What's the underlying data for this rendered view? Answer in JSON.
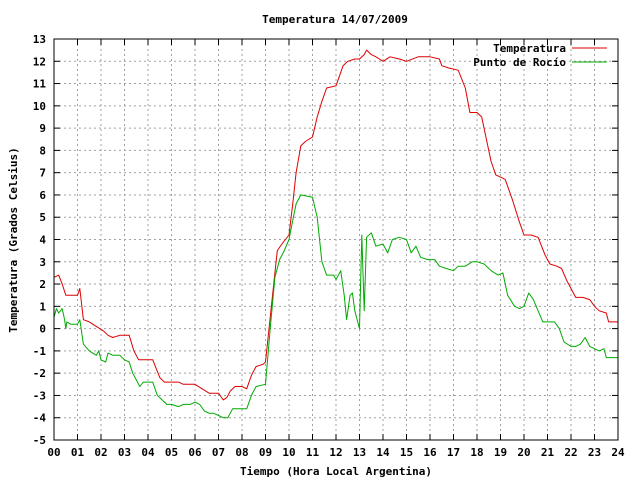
{
  "chart_data": {
    "type": "line",
    "title": "Temperatura 14/07/2009",
    "xlabel": "Tiempo (Hora Local Argentina)",
    "ylabel": "Temperatura (Grados Celsius)",
    "xlim": [
      0,
      24
    ],
    "ylim": [
      -5,
      13
    ],
    "x_ticks": [
      "00",
      "01",
      "02",
      "03",
      "04",
      "05",
      "06",
      "07",
      "08",
      "09",
      "10",
      "11",
      "12",
      "13",
      "14",
      "15",
      "16",
      "17",
      "18",
      "19",
      "20",
      "21",
      "22",
      "23",
      "24"
    ],
    "y_ticks": [
      -5,
      -4,
      -3,
      -2,
      -1,
      0,
      1,
      2,
      3,
      4,
      5,
      6,
      7,
      8,
      9,
      10,
      11,
      12,
      13
    ],
    "grid": true,
    "legend_position": "top-right",
    "series": [
      {
        "name": "Temperatura",
        "color": "#dd0000",
        "points": [
          [
            0.0,
            2.3
          ],
          [
            0.2,
            2.4
          ],
          [
            0.35,
            2.0
          ],
          [
            0.5,
            1.5
          ],
          [
            0.7,
            1.5
          ],
          [
            1.0,
            1.5
          ],
          [
            1.1,
            1.8
          ],
          [
            1.25,
            0.4
          ],
          [
            1.5,
            0.3
          ],
          [
            1.8,
            0.1
          ],
          [
            2.1,
            -0.1
          ],
          [
            2.3,
            -0.3
          ],
          [
            2.5,
            -0.4
          ],
          [
            2.8,
            -0.3
          ],
          [
            3.0,
            -0.3
          ],
          [
            3.2,
            -0.3
          ],
          [
            3.4,
            -1.0
          ],
          [
            3.6,
            -1.4
          ],
          [
            4.0,
            -1.4
          ],
          [
            4.2,
            -1.4
          ],
          [
            4.5,
            -2.2
          ],
          [
            4.7,
            -2.4
          ],
          [
            5.0,
            -2.4
          ],
          [
            5.3,
            -2.4
          ],
          [
            5.5,
            -2.5
          ],
          [
            5.8,
            -2.5
          ],
          [
            6.0,
            -2.5
          ],
          [
            6.3,
            -2.7
          ],
          [
            6.6,
            -2.9
          ],
          [
            7.0,
            -2.9
          ],
          [
            7.2,
            -3.2
          ],
          [
            7.35,
            -3.1
          ],
          [
            7.5,
            -2.8
          ],
          [
            7.7,
            -2.6
          ],
          [
            8.0,
            -2.6
          ],
          [
            8.2,
            -2.7
          ],
          [
            8.4,
            -2.1
          ],
          [
            8.6,
            -1.7
          ],
          [
            8.9,
            -1.6
          ],
          [
            9.0,
            -1.5
          ],
          [
            9.2,
            0.5
          ],
          [
            9.4,
            2.5
          ],
          [
            9.5,
            3.5
          ],
          [
            9.7,
            3.8
          ],
          [
            10.0,
            4.2
          ],
          [
            10.15,
            5.5
          ],
          [
            10.3,
            7.0
          ],
          [
            10.5,
            8.2
          ],
          [
            10.7,
            8.4
          ],
          [
            11.0,
            8.6
          ],
          [
            11.2,
            9.5
          ],
          [
            11.4,
            10.2
          ],
          [
            11.6,
            10.8
          ],
          [
            12.0,
            10.9
          ],
          [
            12.3,
            11.8
          ],
          [
            12.5,
            12.0
          ],
          [
            12.8,
            12.1
          ],
          [
            13.0,
            12.1
          ],
          [
            13.2,
            12.3
          ],
          [
            13.3,
            12.5
          ],
          [
            13.5,
            12.3
          ],
          [
            13.7,
            12.2
          ],
          [
            14.0,
            12.0
          ],
          [
            14.3,
            12.2
          ],
          [
            14.7,
            12.1
          ],
          [
            15.0,
            12.0
          ],
          [
            15.5,
            12.2
          ],
          [
            16.0,
            12.2
          ],
          [
            16.4,
            12.1
          ],
          [
            16.5,
            11.8
          ],
          [
            16.8,
            11.7
          ],
          [
            17.2,
            11.6
          ],
          [
            17.5,
            10.8
          ],
          [
            17.7,
            9.7
          ],
          [
            18.0,
            9.7
          ],
          [
            18.2,
            9.5
          ],
          [
            18.4,
            8.5
          ],
          [
            18.6,
            7.5
          ],
          [
            18.8,
            6.9
          ],
          [
            19.0,
            6.8
          ],
          [
            19.2,
            6.7
          ],
          [
            19.5,
            5.8
          ],
          [
            19.8,
            4.8
          ],
          [
            20.0,
            4.2
          ],
          [
            20.3,
            4.2
          ],
          [
            20.6,
            4.1
          ],
          [
            20.9,
            3.3
          ],
          [
            21.1,
            2.9
          ],
          [
            21.4,
            2.8
          ],
          [
            21.6,
            2.7
          ],
          [
            21.8,
            2.2
          ],
          [
            22.0,
            1.8
          ],
          [
            22.2,
            1.4
          ],
          [
            22.5,
            1.4
          ],
          [
            22.8,
            1.3
          ],
          [
            23.0,
            1.0
          ],
          [
            23.2,
            0.8
          ],
          [
            23.5,
            0.7
          ],
          [
            23.6,
            0.3
          ],
          [
            24.0,
            0.3
          ]
        ]
      },
      {
        "name": "Punto de Rocío",
        "color": "#00aa00",
        "points": [
          [
            0.0,
            0.5
          ],
          [
            0.1,
            0.9
          ],
          [
            0.2,
            0.7
          ],
          [
            0.35,
            0.9
          ],
          [
            0.45,
            0.4
          ],
          [
            0.5,
            0.0
          ],
          [
            0.55,
            0.3
          ],
          [
            0.7,
            0.2
          ],
          [
            1.0,
            0.2
          ],
          [
            1.1,
            0.4
          ],
          [
            1.25,
            -0.7
          ],
          [
            1.5,
            -1.0
          ],
          [
            1.8,
            -1.2
          ],
          [
            1.9,
            -1.0
          ],
          [
            2.0,
            -1.4
          ],
          [
            2.2,
            -1.5
          ],
          [
            2.3,
            -1.1
          ],
          [
            2.5,
            -1.2
          ],
          [
            2.8,
            -1.2
          ],
          [
            3.0,
            -1.4
          ],
          [
            3.2,
            -1.5
          ],
          [
            3.35,
            -2.0
          ],
          [
            3.5,
            -2.3
          ],
          [
            3.65,
            -2.6
          ],
          [
            3.8,
            -2.4
          ],
          [
            4.0,
            -2.4
          ],
          [
            4.2,
            -2.4
          ],
          [
            4.4,
            -3.0
          ],
          [
            4.6,
            -3.2
          ],
          [
            4.8,
            -3.4
          ],
          [
            5.0,
            -3.4
          ],
          [
            5.3,
            -3.5
          ],
          [
            5.5,
            -3.4
          ],
          [
            5.8,
            -3.4
          ],
          [
            6.0,
            -3.3
          ],
          [
            6.2,
            -3.4
          ],
          [
            6.4,
            -3.7
          ],
          [
            6.6,
            -3.8
          ],
          [
            6.8,
            -3.8
          ],
          [
            7.0,
            -3.9
          ],
          [
            7.2,
            -4.0
          ],
          [
            7.4,
            -4.0
          ],
          [
            7.6,
            -3.6
          ],
          [
            7.8,
            -3.6
          ],
          [
            8.2,
            -3.6
          ],
          [
            8.4,
            -3.0
          ],
          [
            8.6,
            -2.6
          ],
          [
            9.0,
            -2.5
          ],
          [
            9.2,
            0.0
          ],
          [
            9.4,
            2.3
          ],
          [
            9.6,
            3.1
          ],
          [
            9.8,
            3.5
          ],
          [
            10.0,
            4.0
          ],
          [
            10.15,
            4.8
          ],
          [
            10.3,
            5.6
          ],
          [
            10.5,
            6.0
          ],
          [
            11.0,
            5.9
          ],
          [
            11.2,
            5.0
          ],
          [
            11.4,
            3.0
          ],
          [
            11.6,
            2.4
          ],
          [
            11.9,
            2.4
          ],
          [
            12.0,
            2.2
          ],
          [
            12.2,
            2.6
          ],
          [
            12.35,
            1.5
          ],
          [
            12.45,
            0.4
          ],
          [
            12.6,
            1.5
          ],
          [
            12.7,
            1.6
          ],
          [
            12.8,
            0.8
          ],
          [
            13.0,
            0.0
          ],
          [
            13.1,
            4.2
          ],
          [
            13.2,
            0.8
          ],
          [
            13.3,
            4.1
          ],
          [
            13.5,
            4.3
          ],
          [
            13.7,
            3.7
          ],
          [
            14.0,
            3.8
          ],
          [
            14.2,
            3.4
          ],
          [
            14.4,
            4.0
          ],
          [
            14.7,
            4.1
          ],
          [
            15.0,
            4.0
          ],
          [
            15.2,
            3.4
          ],
          [
            15.4,
            3.7
          ],
          [
            15.6,
            3.2
          ],
          [
            15.9,
            3.1
          ],
          [
            16.2,
            3.1
          ],
          [
            16.4,
            2.8
          ],
          [
            16.7,
            2.7
          ],
          [
            17.0,
            2.6
          ],
          [
            17.2,
            2.8
          ],
          [
            17.5,
            2.8
          ],
          [
            17.8,
            3.0
          ],
          [
            18.0,
            3.0
          ],
          [
            18.3,
            2.9
          ],
          [
            18.6,
            2.6
          ],
          [
            18.9,
            2.4
          ],
          [
            19.1,
            2.5
          ],
          [
            19.3,
            1.5
          ],
          [
            19.6,
            1.0
          ],
          [
            19.8,
            0.9
          ],
          [
            20.0,
            1.0
          ],
          [
            20.2,
            1.6
          ],
          [
            20.4,
            1.3
          ],
          [
            20.6,
            0.8
          ],
          [
            20.8,
            0.3
          ],
          [
            21.0,
            0.3
          ],
          [
            21.3,
            0.3
          ],
          [
            21.5,
            0.0
          ],
          [
            21.7,
            -0.6
          ],
          [
            22.0,
            -0.8
          ],
          [
            22.2,
            -0.8
          ],
          [
            22.4,
            -0.7
          ],
          [
            22.6,
            -0.4
          ],
          [
            22.8,
            -0.8
          ],
          [
            23.0,
            -0.9
          ],
          [
            23.2,
            -1.0
          ],
          [
            23.4,
            -0.9
          ],
          [
            23.5,
            -1.3
          ],
          [
            24.0,
            -1.3
          ]
        ]
      }
    ]
  }
}
